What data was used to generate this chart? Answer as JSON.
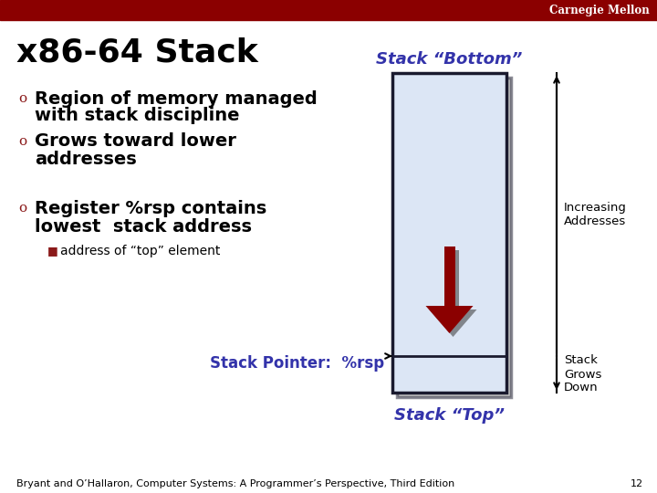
{
  "title": "x86-64 Stack",
  "background_color": "#ffffff",
  "header_color": "#8b0000",
  "header_text": "Carnegie Mellon",
  "header_text_color": "#ffffff",
  "title_color": "#000000",
  "title_fontsize": 26,
  "bullet_color": "#000000",
  "bullet_fontsize": 14,
  "bullet_symbol_color": "#8b1a1a",
  "subbullet": "address of “top” element",
  "stack_bottom_label": "Stack “Bottom”",
  "stack_top_label": "Stack “Top”",
  "stack_pointer_label": "Stack Pointer:  %rsp",
  "stack_fill_color": "#dce6f5",
  "stack_border_color": "#1a1a2e",
  "arrow_down_inside_color": "#8b0000",
  "arrow_shadow_color": "#444444",
  "increasing_label": "Increasing\nAddresses",
  "grows_down_label": "Stack\nGrows\nDown",
  "label_color": "#3333aa",
  "footer_text": "Bryant and O’Hallaron, Computer Systems: A Programmer’s Perspective, Third Edition",
  "footer_page": "12",
  "footer_color": "#000000",
  "footer_fontsize": 8
}
